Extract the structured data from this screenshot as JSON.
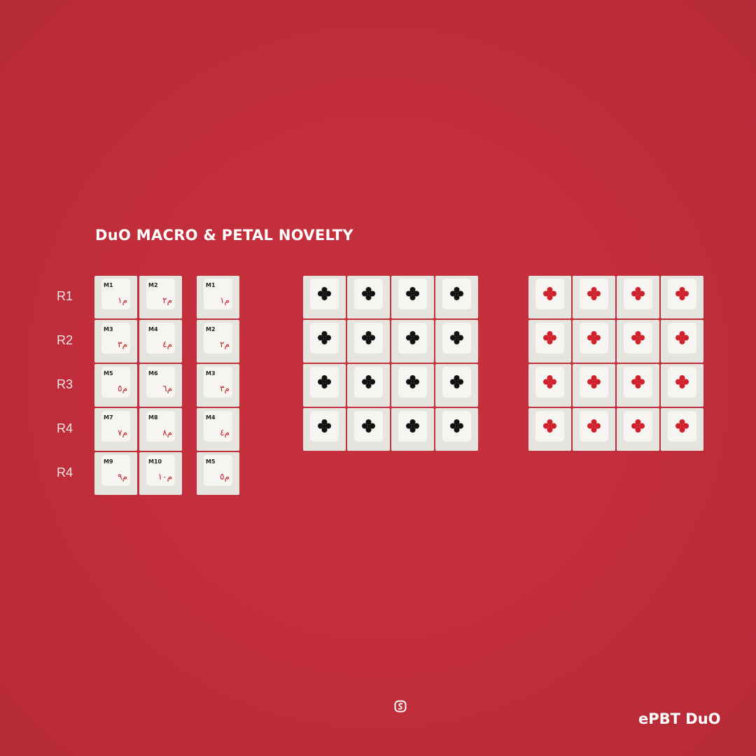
{
  "title": "DuO MACRO & PETAL NOVELTY",
  "row_labels": [
    "R1",
    "R2",
    "R3",
    "R4",
    "R4"
  ],
  "macro_col1": [
    {
      "l": "M1",
      "a": "م١"
    },
    {
      "l": "M3",
      "a": "م٣"
    },
    {
      "l": "M5",
      "a": "م٥"
    },
    {
      "l": "M7",
      "a": "م٧"
    },
    {
      "l": "M9",
      "a": "م٩"
    }
  ],
  "macro_col2": [
    {
      "l": "M2",
      "a": "م٢"
    },
    {
      "l": "M4",
      "a": "م٤"
    },
    {
      "l": "M6",
      "a": "م٦"
    },
    {
      "l": "M8",
      "a": "م٨"
    },
    {
      "l": "M10",
      "a": "م١٠"
    }
  ],
  "macro_col3": [
    {
      "l": "M1",
      "a": "م١"
    },
    {
      "l": "M2",
      "a": "م٢"
    },
    {
      "l": "M3",
      "a": "م٣"
    },
    {
      "l": "M4",
      "a": "م٤"
    },
    {
      "l": "M5",
      "a": "م٥"
    }
  ],
  "petal_grids": [
    {
      "color": "#111111",
      "rows": 4,
      "cols": 4,
      "icon": "petal-icon"
    },
    {
      "color": "#d0202c",
      "rows": 4,
      "cols": 4,
      "icon": "petal-icon"
    }
  ],
  "colors": {
    "background": "#c22f3b",
    "keycap": "#e6e4df",
    "legend_red": "#c0202c"
  },
  "brand": "ePBT DuO",
  "logo_icon": "sa-logo-icon"
}
